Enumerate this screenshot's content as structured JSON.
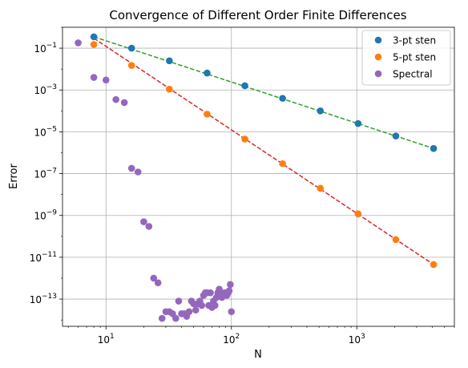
{
  "chart_data": {
    "type": "scatter",
    "title": "Convergence of Different Order Finite Differences",
    "xlabel": "N",
    "ylabel": "Error",
    "xscale": "log",
    "yscale": "log",
    "xlim": [
      4.5,
      6000
    ],
    "ylim": [
      5e-15,
      1
    ],
    "grid": true,
    "legend_position": "top-right",
    "x_ticks": [
      {
        "value": 10,
        "base": "10",
        "exp": "1"
      },
      {
        "value": 100,
        "base": "10",
        "exp": "2"
      },
      {
        "value": 1000,
        "base": "10",
        "exp": "3"
      }
    ],
    "y_ticks": [
      {
        "value": 0.1,
        "base": "10",
        "exp": "−1"
      },
      {
        "value": 0.001,
        "base": "10",
        "exp": "−3"
      },
      {
        "value": 1e-05,
        "base": "10",
        "exp": "−5"
      },
      {
        "value": 1e-07,
        "base": "10",
        "exp": "−7"
      },
      {
        "value": 1e-09,
        "base": "10",
        "exp": "−9"
      },
      {
        "value": 1e-11,
        "base": "10",
        "exp": "−11"
      },
      {
        "value": 1e-13,
        "base": "10",
        "exp": "−13"
      }
    ],
    "series": [
      {
        "name": "3-pt sten",
        "kind": "scatter",
        "color": "#1f77b4",
        "x": [
          8,
          16,
          32,
          64,
          128,
          256,
          512,
          1024,
          2048,
          4096
        ],
        "y": [
          0.35,
          0.1,
          0.025,
          0.0065,
          0.0016,
          0.0004,
          0.0001,
          2.5e-05,
          6.3e-06,
          1.6e-06
        ]
      },
      {
        "name": "5-pt sten",
        "kind": "scatter",
        "color": "#ff7f0e",
        "x": [
          8,
          16,
          32,
          64,
          128,
          256,
          512,
          1024,
          2048,
          4096
        ],
        "y": [
          0.15,
          0.015,
          0.0011,
          7e-05,
          4.5e-06,
          3e-07,
          2e-08,
          1.2e-09,
          7e-11,
          4.5e-12
        ]
      },
      {
        "name": "Spectral",
        "kind": "scatter",
        "color": "#9467bd",
        "x": [
          6,
          8,
          10,
          12,
          14,
          16,
          18,
          20,
          22,
          24,
          26,
          28,
          30,
          32,
          34,
          36,
          38,
          40,
          42,
          44,
          46,
          48,
          50,
          52,
          54,
          56,
          58,
          60,
          62,
          64,
          66,
          68,
          70,
          72,
          74,
          76,
          78,
          80,
          82,
          84,
          86,
          88,
          90,
          92,
          94,
          96,
          98,
          100
        ],
        "y": [
          0.18,
          0.004,
          0.003,
          0.00035,
          0.00025,
          1.8e-07,
          1.2e-07,
          5e-10,
          3e-10,
          1e-12,
          6e-13,
          1.2e-14,
          2.5e-14,
          2.5e-14,
          2e-14,
          1.2e-14,
          8e-14,
          2e-14,
          2e-14,
          1.5e-14,
          2.5e-14,
          8e-14,
          6e-14,
          3e-14,
          6e-14,
          8e-14,
          5e-14,
          1.5e-13,
          2e-13,
          2e-13,
          5e-14,
          2e-13,
          4e-14,
          8e-14,
          5e-14,
          1.2e-13,
          2e-13,
          3e-13,
          1.5e-13,
          1.2e-13,
          1.5e-13,
          2e-13,
          1.8e-13,
          1.5e-13,
          2e-13,
          2.5e-13,
          5e-13,
          2.5e-14
        ]
      },
      {
        "kind": "line",
        "color": "#2ca02c",
        "x": [
          8,
          4096
        ],
        "y": [
          0.35,
          1.6e-06
        ]
      },
      {
        "kind": "line",
        "color": "#d62728",
        "x": [
          8,
          4096
        ],
        "y": [
          0.3,
          4.5e-12
        ]
      }
    ]
  }
}
